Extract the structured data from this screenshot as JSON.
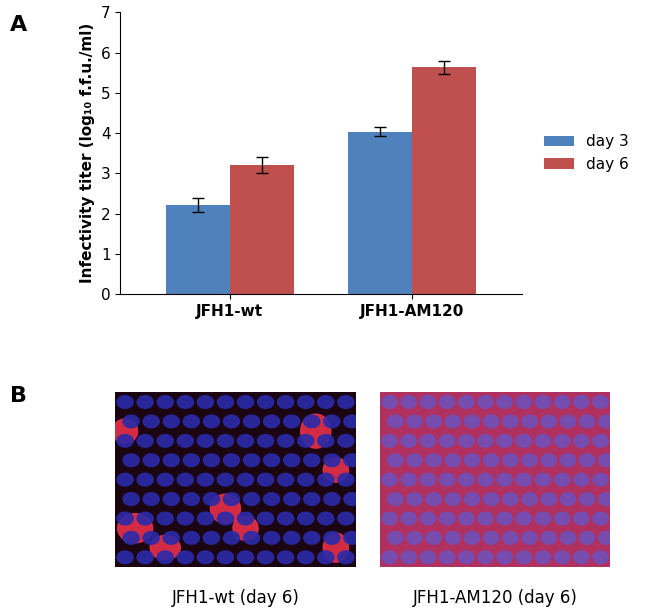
{
  "chart_data": {
    "type": "bar",
    "y_label": "Infectivity titer (log₁₀ f.f.u./ml)",
    "categories": [
      "JFH1-wt",
      "JFH1-AM120"
    ],
    "series": [
      {
        "name": "day 3",
        "color": "#4f81bd",
        "values": [
          2.22,
          4.03
        ],
        "errors": [
          0.18,
          0.11
        ]
      },
      {
        "name": "day 6",
        "color": "#c0504d",
        "values": [
          3.2,
          5.63
        ],
        "errors": [
          0.2,
          0.17
        ]
      }
    ],
    "ylim": [
      0,
      7
    ],
    "yticks": [
      0,
      1,
      2,
      3,
      4,
      5,
      6,
      7
    ],
    "grid": false,
    "legend": "right"
  },
  "panel_labels": [
    "A",
    "B"
  ],
  "images": [
    {
      "caption": "JFH1-wt (day 6)"
    },
    {
      "caption": "JFH1-AM120 (day 6)"
    }
  ]
}
